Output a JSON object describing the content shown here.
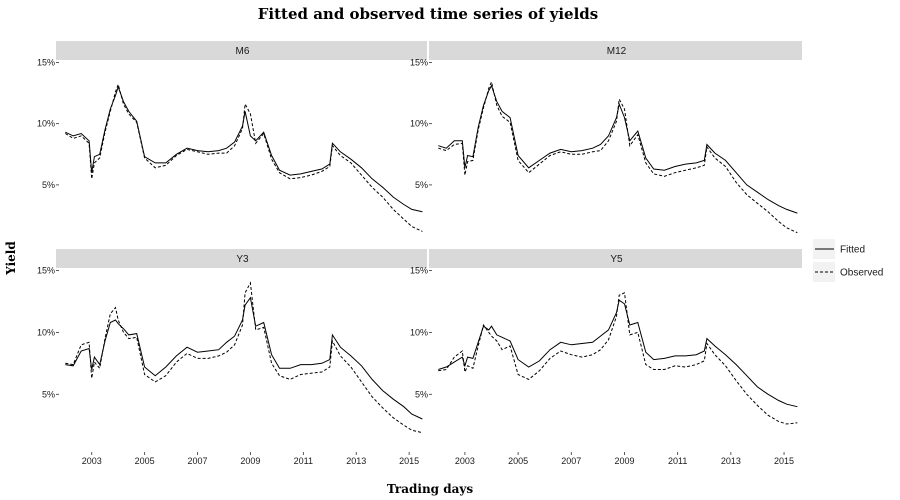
{
  "chart_data": {
    "type": "line",
    "title": "Fitted and observed time series of yields",
    "xlabel": "Trading days",
    "ylabel": "Yield",
    "xlim": [
      2001.8,
      2015.6
    ],
    "ylim": [
      0.5,
      15.2
    ],
    "y_unit": "%",
    "x_ticks": [
      "2003",
      "2005",
      "2007",
      "2009",
      "2011",
      "2013",
      "2015"
    ],
    "x_tick_values": [
      2003,
      2005,
      2007,
      2009,
      2011,
      2013,
      2015
    ],
    "y_ticks": [
      "5%",
      "10%",
      "15%"
    ],
    "y_tick_values": [
      5,
      10,
      15
    ],
    "grid": false,
    "legend_position": "right",
    "legend": [
      {
        "label": "Fitted",
        "style": "solid"
      },
      {
        "label": "Observed",
        "style": "dashed"
      }
    ],
    "panels": [
      {
        "name": "M6",
        "x": [
          2002.0,
          2002.3,
          2002.6,
          2002.9,
          2003.0,
          2003.1,
          2003.3,
          2003.5,
          2003.7,
          2003.9,
          2004.0,
          2004.2,
          2004.4,
          2004.7,
          2005.0,
          2005.4,
          2005.8,
          2006.2,
          2006.6,
          2007.0,
          2007.4,
          2007.8,
          2008.1,
          2008.4,
          2008.7,
          2008.8,
          2009.0,
          2009.2,
          2009.5,
          2009.8,
          2010.1,
          2010.5,
          2010.9,
          2011.3,
          2011.7,
          2012.0,
          2012.1,
          2012.4,
          2012.8,
          2013.2,
          2013.6,
          2014.0,
          2014.4,
          2014.8,
          2015.1,
          2015.5
        ],
        "series": [
          {
            "name": "Fitted",
            "values": [
              9.3,
              9.0,
              9.2,
              8.6,
              6.0,
              7.3,
              7.5,
              9.5,
              11.2,
              12.3,
              13.0,
              11.8,
              11.0,
              10.2,
              7.3,
              6.8,
              6.8,
              7.5,
              8.0,
              7.8,
              7.7,
              7.8,
              8.0,
              8.5,
              9.8,
              11.0,
              9.0,
              8.6,
              9.3,
              7.4,
              6.2,
              5.8,
              5.9,
              6.1,
              6.3,
              6.7,
              8.4,
              7.7,
              7.1,
              6.4,
              5.5,
              4.8,
              4.0,
              3.4,
              3.0,
              2.8
            ]
          },
          {
            "name": "Observed",
            "values": [
              9.2,
              8.8,
              9.0,
              8.4,
              5.5,
              6.8,
              7.2,
              9.3,
              11.0,
              12.6,
              13.2,
              11.6,
              10.8,
              10.1,
              7.2,
              6.4,
              6.6,
              7.4,
              7.9,
              7.7,
              7.5,
              7.6,
              7.6,
              8.2,
              9.6,
              11.6,
              10.8,
              8.4,
              9.2,
              7.1,
              6.0,
              5.5,
              5.6,
              5.8,
              6.1,
              6.5,
              8.2,
              7.4,
              6.8,
              5.8,
              4.8,
              4.0,
              3.0,
              2.2,
              1.6,
              1.2
            ]
          }
        ]
      },
      {
        "name": "M12",
        "x": [
          2002.0,
          2002.3,
          2002.6,
          2002.9,
          2003.0,
          2003.1,
          2003.3,
          2003.5,
          2003.7,
          2003.9,
          2004.0,
          2004.2,
          2004.4,
          2004.7,
          2005.0,
          2005.4,
          2005.8,
          2006.2,
          2006.6,
          2007.0,
          2007.4,
          2007.8,
          2008.1,
          2008.4,
          2008.7,
          2008.8,
          2009.0,
          2009.2,
          2009.5,
          2009.8,
          2010.1,
          2010.5,
          2010.9,
          2011.3,
          2011.7,
          2012.0,
          2012.1,
          2012.4,
          2012.8,
          2013.2,
          2013.6,
          2014.0,
          2014.4,
          2014.8,
          2015.1,
          2015.5
        ],
        "series": [
          {
            "name": "Fitted",
            "values": [
              8.2,
              8.0,
              8.6,
              8.6,
              6.4,
              7.4,
              7.3,
              9.7,
              11.5,
              12.7,
              13.1,
              11.8,
              11.0,
              10.5,
              7.4,
              6.4,
              7.0,
              7.6,
              7.9,
              7.7,
              7.8,
              8.0,
              8.3,
              9.0,
              10.5,
              11.6,
              10.5,
              8.6,
              9.4,
              7.2,
              6.3,
              6.2,
              6.5,
              6.7,
              6.8,
              7.0,
              8.3,
              7.6,
              7.0,
              6.0,
              5.0,
              4.4,
              3.8,
              3.3,
              3.0,
              2.7
            ]
          },
          {
            "name": "Observed",
            "values": [
              8.0,
              7.8,
              8.3,
              8.4,
              5.8,
              6.9,
              7.0,
              9.5,
              11.3,
              12.9,
              13.4,
              11.5,
              10.6,
              10.1,
              7.0,
              6.0,
              6.7,
              7.4,
              7.7,
              7.5,
              7.5,
              7.7,
              7.8,
              8.6,
              10.2,
              12.0,
              11.2,
              8.2,
              9.1,
              6.8,
              5.9,
              5.7,
              6.0,
              6.2,
              6.4,
              6.6,
              8.1,
              7.2,
              6.5,
              5.2,
              4.2,
              3.5,
              2.8,
              2.0,
              1.5,
              1.1
            ]
          }
        ]
      },
      {
        "name": "Y3",
        "x": [
          2002.0,
          2002.3,
          2002.6,
          2002.9,
          2003.0,
          2003.1,
          2003.3,
          2003.5,
          2003.7,
          2003.9,
          2004.0,
          2004.2,
          2004.4,
          2004.7,
          2005.0,
          2005.4,
          2005.8,
          2006.2,
          2006.6,
          2007.0,
          2007.4,
          2007.8,
          2008.1,
          2008.4,
          2008.7,
          2008.8,
          2009.0,
          2009.2,
          2009.5,
          2009.8,
          2010.1,
          2010.5,
          2010.9,
          2011.3,
          2011.7,
          2012.0,
          2012.1,
          2012.4,
          2012.8,
          2013.2,
          2013.6,
          2014.0,
          2014.4,
          2014.8,
          2015.1,
          2015.5
        ],
        "series": [
          {
            "name": "Fitted",
            "values": [
              7.4,
              7.3,
              8.5,
              8.7,
              7.0,
              8.0,
              7.4,
              9.3,
              10.8,
              11.0,
              10.7,
              10.3,
              9.8,
              9.9,
              7.2,
              6.5,
              7.2,
              8.1,
              8.8,
              8.4,
              8.5,
              8.6,
              9.2,
              9.7,
              11.0,
              12.2,
              12.8,
              10.5,
              10.8,
              8.2,
              7.1,
              7.1,
              7.4,
              7.4,
              7.5,
              7.8,
              9.8,
              8.8,
              8.1,
              7.3,
              6.2,
              5.3,
              4.6,
              4.0,
              3.4,
              3.0
            ]
          },
          {
            "name": "Observed",
            "values": [
              7.5,
              7.4,
              9.0,
              9.2,
              6.3,
              7.6,
              7.1,
              9.5,
              11.5,
              12.0,
              11.0,
              10.0,
              9.5,
              9.6,
              6.6,
              6.0,
              6.5,
              7.6,
              8.3,
              7.9,
              7.9,
              8.1,
              8.4,
              9.0,
              10.6,
              13.2,
              14.0,
              10.2,
              10.4,
              7.5,
              6.5,
              6.2,
              6.6,
              6.7,
              6.8,
              7.2,
              9.3,
              8.1,
              7.2,
              6.0,
              4.8,
              3.9,
              3.1,
              2.5,
              2.1,
              1.9
            ]
          }
        ]
      },
      {
        "name": "Y5",
        "x": [
          2002.0,
          2002.3,
          2002.6,
          2002.9,
          2003.0,
          2003.1,
          2003.3,
          2003.5,
          2003.7,
          2003.9,
          2004.0,
          2004.2,
          2004.4,
          2004.7,
          2005.0,
          2005.4,
          2005.8,
          2006.2,
          2006.6,
          2007.0,
          2007.4,
          2007.8,
          2008.1,
          2008.4,
          2008.7,
          2008.8,
          2009.0,
          2009.2,
          2009.5,
          2009.8,
          2010.1,
          2010.5,
          2010.9,
          2011.3,
          2011.7,
          2012.0,
          2012.1,
          2012.4,
          2012.8,
          2013.2,
          2013.6,
          2014.0,
          2014.4,
          2014.8,
          2015.1,
          2015.5
        ],
        "series": [
          {
            "name": "Fitted",
            "values": [
              7.0,
              7.2,
              7.6,
              8.0,
              7.3,
              8.0,
              7.9,
              9.2,
              10.5,
              10.2,
              10.5,
              9.8,
              9.6,
              9.3,
              7.8,
              7.2,
              7.7,
              8.6,
              9.2,
              9.0,
              9.1,
              9.2,
              9.7,
              10.2,
              11.6,
              12.6,
              12.3,
              10.6,
              10.8,
              8.4,
              7.8,
              7.9,
              8.1,
              8.1,
              8.2,
              8.5,
              9.5,
              8.9,
              8.2,
              7.4,
              6.5,
              5.6,
              5.0,
              4.5,
              4.2,
              4.0
            ]
          },
          {
            "name": "Observed",
            "values": [
              6.9,
              7.0,
              8.0,
              8.5,
              6.8,
              7.3,
              7.1,
              8.9,
              10.6,
              10.0,
              9.7,
              9.3,
              8.6,
              8.9,
              6.6,
              6.2,
              6.9,
              7.9,
              8.5,
              8.2,
              8.0,
              8.2,
              8.6,
              9.4,
              11.3,
              13.0,
              13.2,
              9.8,
              10.0,
              7.4,
              7.0,
              7.0,
              7.3,
              7.2,
              7.4,
              7.7,
              9.1,
              8.2,
              7.3,
              6.1,
              5.0,
              4.1,
              3.3,
              2.8,
              2.6,
              2.7
            ]
          }
        ]
      }
    ]
  }
}
